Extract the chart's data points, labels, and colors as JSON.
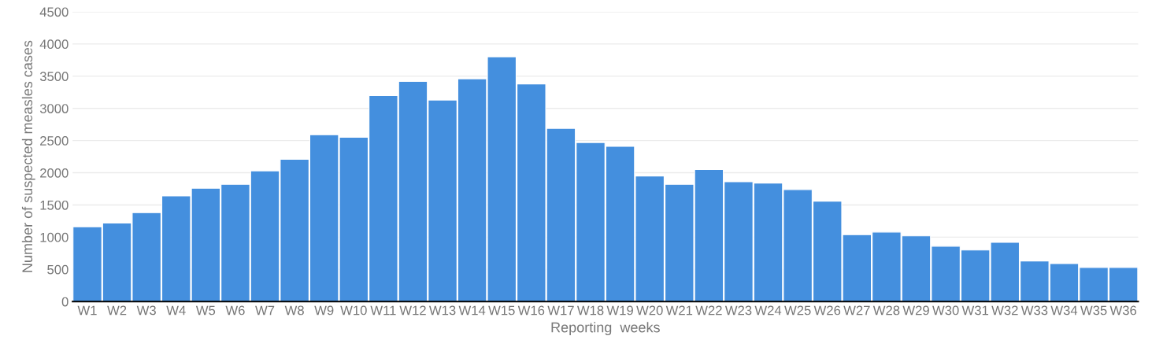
{
  "chart_data": {
    "type": "bar",
    "xlabel": "Reporting  weeks",
    "ylabel": "Number of suspected measles cases",
    "categories": [
      "W1",
      "W2",
      "W3",
      "W4",
      "W5",
      "W6",
      "W7",
      "W8",
      "W9",
      "W10",
      "W11",
      "W12",
      "W13",
      "W14",
      "W15",
      "W16",
      "W17",
      "W18",
      "W19",
      "W20",
      "W21",
      "W22",
      "W23",
      "W24",
      "W25",
      "W26",
      "W27",
      "W28",
      "W29",
      "W30",
      "W31",
      "W32",
      "W33",
      "W34",
      "W35",
      "W36"
    ],
    "values": [
      1160,
      1220,
      1380,
      1640,
      1760,
      1820,
      2030,
      2210,
      2590,
      2550,
      3200,
      3420,
      3130,
      3460,
      3800,
      3380,
      2690,
      2470,
      2410,
      1950,
      1820,
      2050,
      1860,
      1840,
      1740,
      1560,
      1040,
      1080,
      1020,
      860,
      800,
      920,
      630,
      590,
      530,
      530
    ],
    "color": "#448fde",
    "ylim": [
      0,
      4500
    ],
    "yticks": [
      0,
      500,
      1000,
      1500,
      2000,
      2500,
      3000,
      3500,
      4000,
      4500
    ],
    "grid": "y",
    "legend": false
  }
}
